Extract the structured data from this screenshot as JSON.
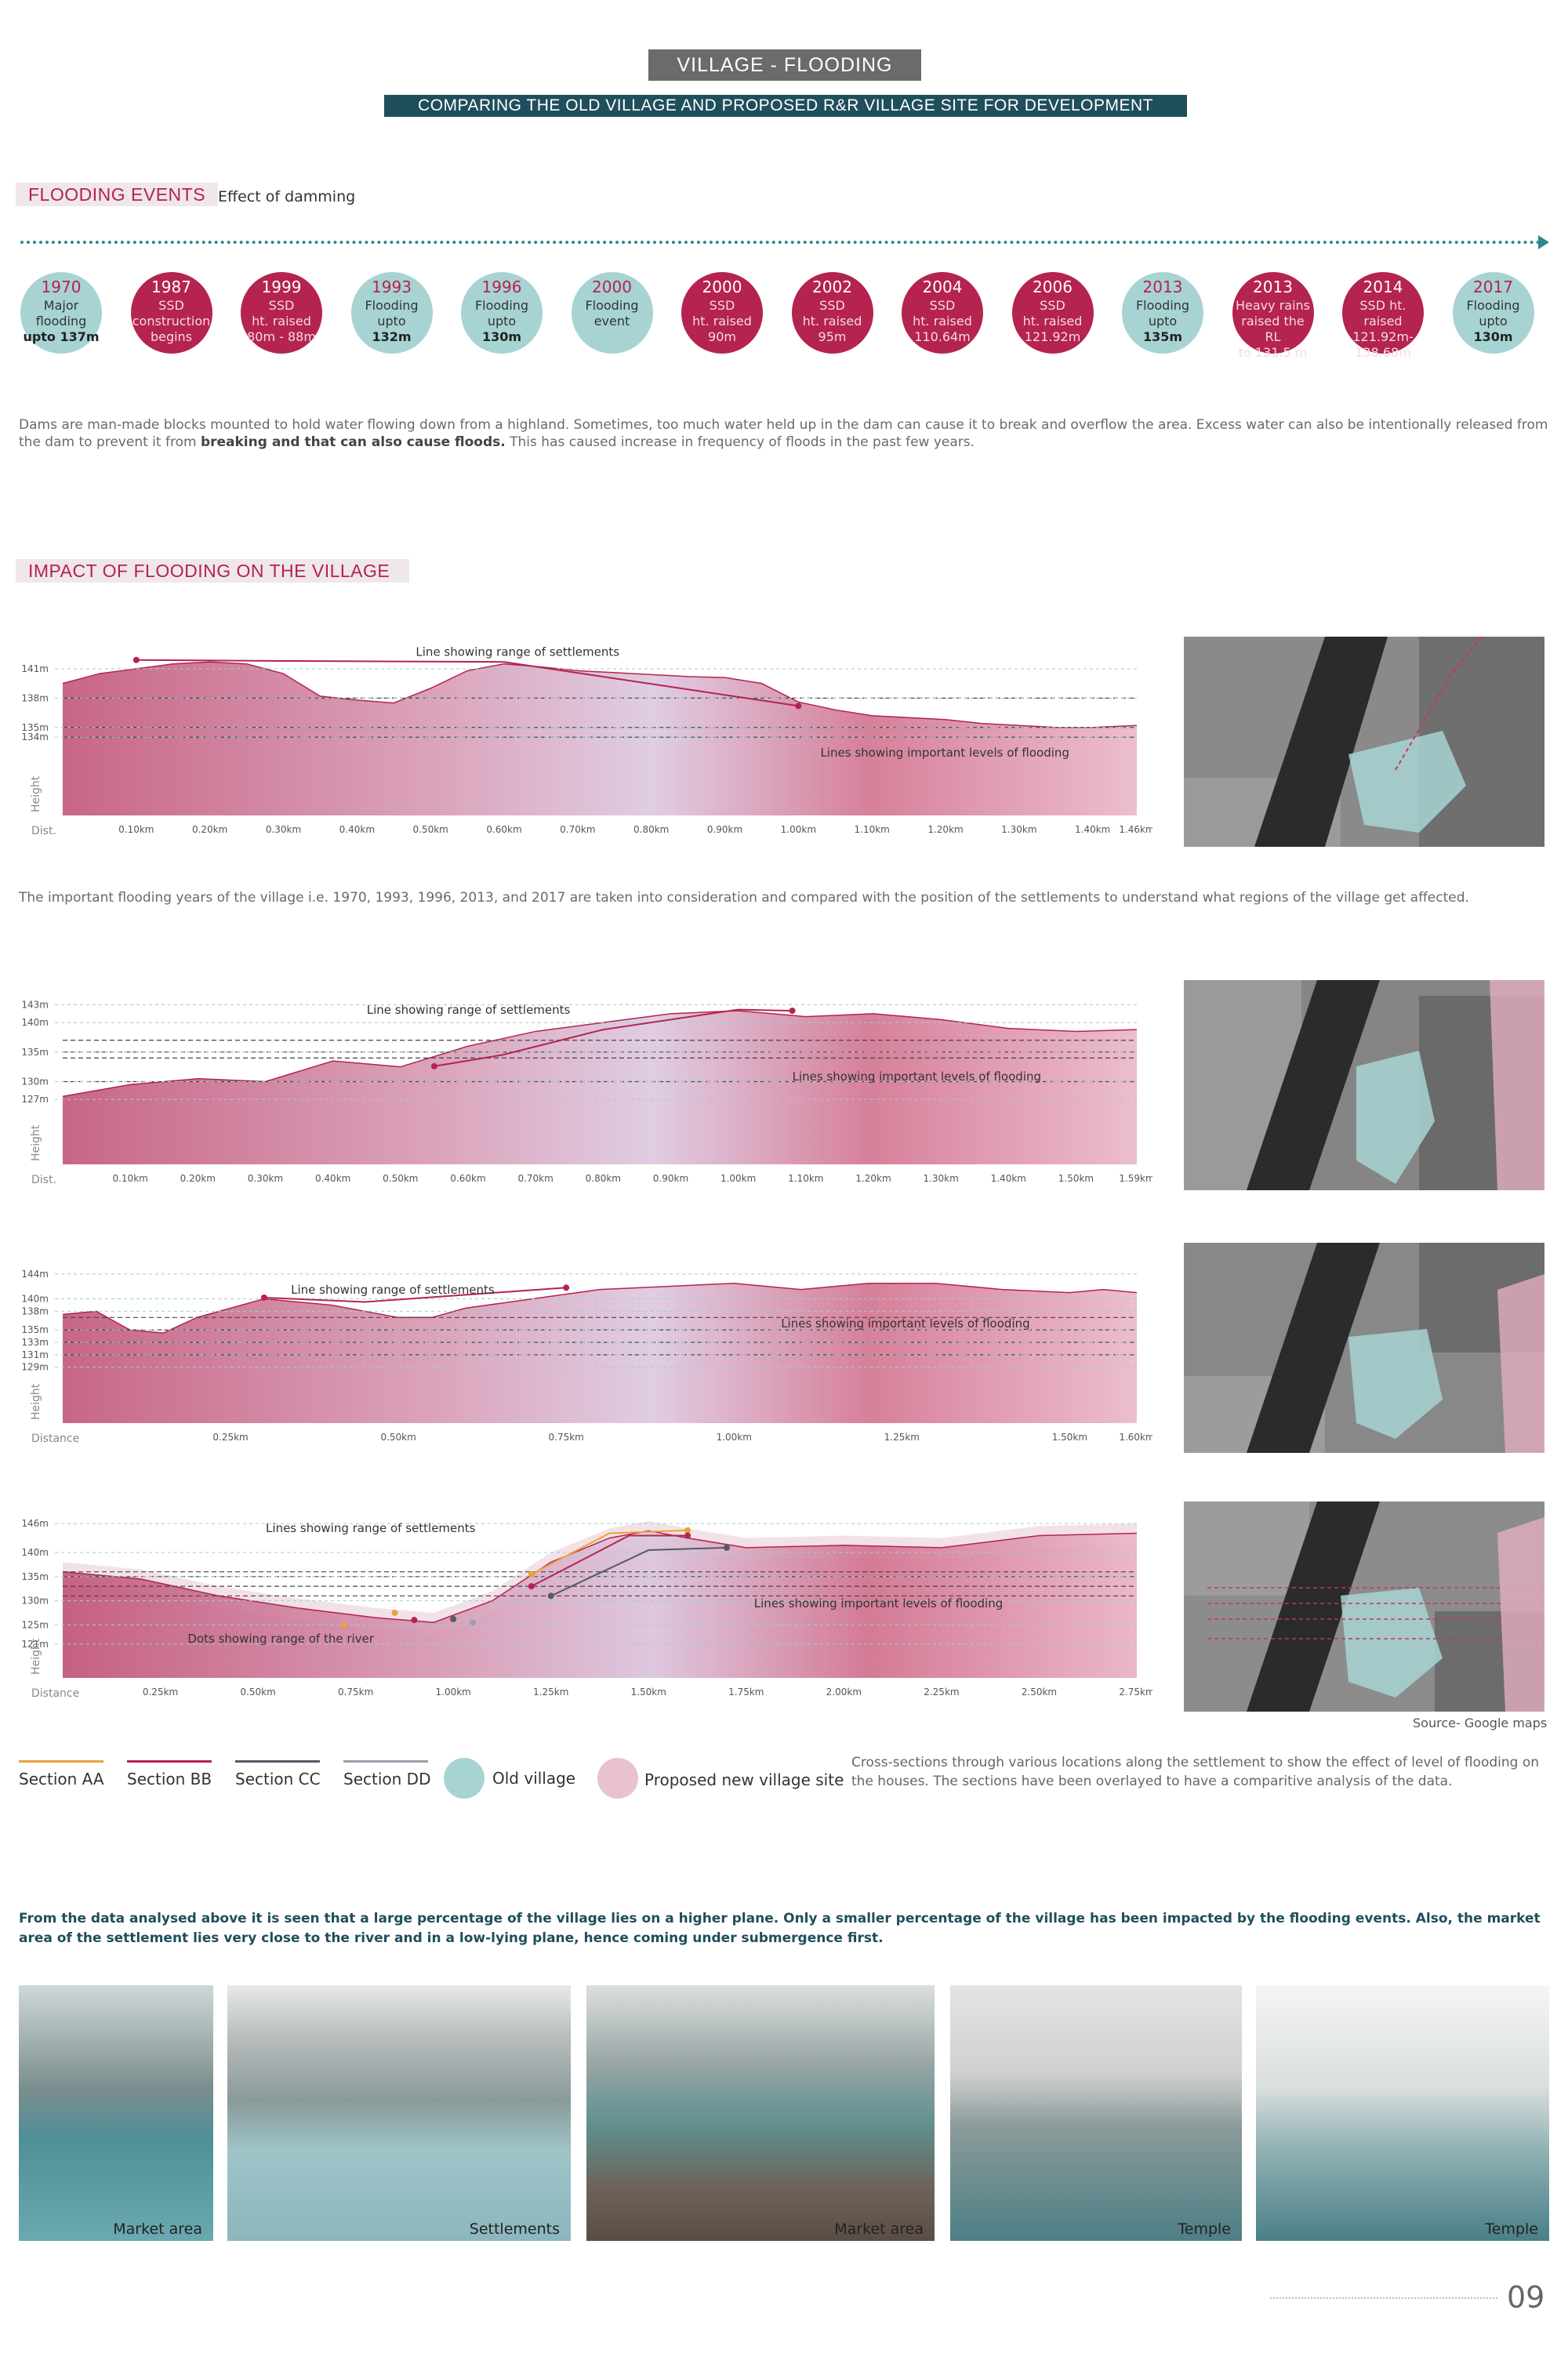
{
  "title": "VILLAGE - FLOODING",
  "subtitle": "COMPARING THE OLD VILLAGE AND PROPOSED R&R VILLAGE SITE FOR DEVELOPMENT",
  "flooding_events": {
    "heading": "FLOODING EVENTS",
    "caption": "Effect of damming",
    "events": [
      {
        "year": "1970",
        "lines": [
          "Major",
          "flooding"
        ],
        "bold": "upto 137m",
        "type": "teal"
      },
      {
        "year": "1987",
        "lines": [
          "SSD",
          "construction",
          "begins"
        ],
        "bold": "",
        "type": "magenta"
      },
      {
        "year": "1999",
        "lines": [
          "SSD",
          "ht. raised",
          "80m - 88m"
        ],
        "bold": "",
        "type": "magenta"
      },
      {
        "year": "1993",
        "lines": [
          "Flooding",
          "upto"
        ],
        "bold": "132m",
        "type": "teal"
      },
      {
        "year": "1996",
        "lines": [
          "Flooding",
          "upto"
        ],
        "bold": "130m",
        "type": "teal"
      },
      {
        "year": "2000",
        "lines": [
          "Flooding",
          "event"
        ],
        "bold": "",
        "type": "teal"
      },
      {
        "year": "2000",
        "lines": [
          "SSD",
          "ht. raised",
          "90m"
        ],
        "bold": "",
        "type": "magenta"
      },
      {
        "year": "2002",
        "lines": [
          "SSD",
          "ht. raised",
          "95m"
        ],
        "bold": "",
        "type": "magenta"
      },
      {
        "year": "2004",
        "lines": [
          "SSD",
          "ht. raised",
          "110.64m"
        ],
        "bold": "",
        "type": "magenta"
      },
      {
        "year": "2006",
        "lines": [
          "SSD",
          "ht. raised",
          "121.92m"
        ],
        "bold": "",
        "type": "magenta"
      },
      {
        "year": "2013",
        "lines": [
          "Flooding",
          "upto"
        ],
        "bold": "135m",
        "type": "teal"
      },
      {
        "year": "2013",
        "lines": [
          "Heavy rains",
          "raised the RL",
          "to 131.5 m"
        ],
        "bold": "",
        "type": "magenta"
      },
      {
        "year": "2014",
        "lines": [
          "SSD ht. raised",
          "121.92m-",
          "138.68m"
        ],
        "bold": "",
        "type": "magenta"
      },
      {
        "year": "2017",
        "lines": [
          "Flooding",
          "upto"
        ],
        "bold": "130m",
        "type": "teal"
      }
    ],
    "paragraph_plain": "Dams are man-made blocks mounted to hold water flowing down from a highland. Sometimes, too much water held up in the dam can cause it to break and overflow the area. Excess water can also be intentionally released from the dam to prevent it from ",
    "paragraph_bold": "breaking and that can also cause floods.",
    "paragraph_end": " This has caused increase in frequency of floods in the past few years."
  },
  "impact": {
    "heading": "IMPACT OF FLOODING ON THE VILLAGE",
    "paragraph": "The important flooding years of the village i.e. 1970, 1993, 1996, 2013, and 2017 are taken into consideration and compared with the position of the settlements to understand what regions of the village get affected."
  },
  "chart_data": [
    {
      "type": "area",
      "section": "Section AA",
      "ylabel": "Height",
      "xlabel": "Dist.",
      "ylim": [
        126,
        143
      ],
      "y_ticks": [
        "141m",
        "138m",
        "135m",
        "134m"
      ],
      "y_tick_values": [
        141,
        138,
        135,
        134
      ],
      "x_ticks": [
        "0.10km",
        "0.20km",
        "0.30km",
        "0.40km",
        "0.50km",
        "0.60km",
        "0.70km",
        "0.80km",
        "0.90km",
        "1.00km",
        "1.10km",
        "1.20km",
        "1.30km",
        "1.40km",
        "1.46km"
      ],
      "x_tick_values": [
        0.1,
        0.2,
        0.3,
        0.4,
        0.5,
        0.6,
        0.7,
        0.8,
        0.9,
        1.0,
        1.1,
        1.2,
        1.3,
        1.4,
        1.46
      ],
      "xlim": [
        0.0,
        1.46
      ],
      "x": [
        0.0,
        0.05,
        0.1,
        0.15,
        0.2,
        0.25,
        0.3,
        0.35,
        0.4,
        0.45,
        0.5,
        0.55,
        0.6,
        0.65,
        0.7,
        0.75,
        0.8,
        0.85,
        0.9,
        0.95,
        1.0,
        1.05,
        1.1,
        1.15,
        1.2,
        1.25,
        1.3,
        1.35,
        1.4,
        1.46
      ],
      "y": [
        139.5,
        140.5,
        141.0,
        141.5,
        141.7,
        141.5,
        140.5,
        138.2,
        137.8,
        137.5,
        139.0,
        140.8,
        141.5,
        141.2,
        140.8,
        140.6,
        140.4,
        140.2,
        140.1,
        139.5,
        137.6,
        136.8,
        136.2,
        136.0,
        135.8,
        135.4,
        135.2,
        135.0,
        135.0,
        135.2
      ],
      "flood_levels": [
        138,
        135,
        134
      ],
      "annotations": [
        "Line showing range of settlements",
        "Lines showing important levels of flooding"
      ]
    },
    {
      "type": "area",
      "section": "Section BB",
      "ylabel": "Height",
      "xlabel": "Dist.",
      "ylim": [
        116,
        144
      ],
      "y_ticks": [
        "143m",
        "140m",
        "135m",
        "130m",
        "127m"
      ],
      "y_tick_values": [
        143,
        140,
        135,
        130,
        127
      ],
      "x_ticks": [
        "0.10km",
        "0.20km",
        "0.30km",
        "0.40km",
        "0.50km",
        "0.60km",
        "0.70km",
        "0.80km",
        "0.90km",
        "1.00km",
        "1.10km",
        "1.20km",
        "1.30km",
        "1.40km",
        "1.50km",
        "1.59km"
      ],
      "x_tick_values": [
        0.1,
        0.2,
        0.3,
        0.4,
        0.5,
        0.6,
        0.7,
        0.8,
        0.9,
        1.0,
        1.1,
        1.2,
        1.3,
        1.4,
        1.5,
        1.59
      ],
      "xlim": [
        0.0,
        1.59
      ],
      "x": [
        0.0,
        0.1,
        0.2,
        0.3,
        0.4,
        0.5,
        0.6,
        0.7,
        0.8,
        0.9,
        1.0,
        1.1,
        1.2,
        1.3,
        1.4,
        1.5,
        1.59
      ],
      "y": [
        127.5,
        129.5,
        130.5,
        130.0,
        133.5,
        132.5,
        136.0,
        138.5,
        140.0,
        141.5,
        142.0,
        141.0,
        141.5,
        140.5,
        139.0,
        138.5,
        138.8
      ],
      "flood_levels": [
        137,
        135,
        134,
        130
      ],
      "annotations": [
        "Line showing range of settlements",
        "Lines showing important levels of flooding"
      ]
    },
    {
      "type": "area",
      "section": "Section CC",
      "ylabel": "Height",
      "xlabel": "Distance",
      "ylim": [
        120,
        146
      ],
      "y_ticks": [
        "144m",
        "140m",
        "138m",
        "135m",
        "133m",
        "131m",
        "129m"
      ],
      "y_tick_values": [
        144,
        140,
        138,
        135,
        133,
        131,
        129
      ],
      "x_ticks": [
        "0.25km",
        "0.50km",
        "0.75km",
        "1.00km",
        "1.25km",
        "1.50km",
        "1.60km"
      ],
      "x_tick_values": [
        0.25,
        0.5,
        0.75,
        1.0,
        1.25,
        1.5,
        1.6
      ],
      "xlim": [
        0.0,
        1.6
      ],
      "x": [
        0.0,
        0.05,
        0.1,
        0.15,
        0.2,
        0.3,
        0.4,
        0.5,
        0.55,
        0.6,
        0.7,
        0.8,
        0.9,
        1.0,
        1.1,
        1.2,
        1.3,
        1.4,
        1.5,
        1.55,
        1.6
      ],
      "y": [
        137.5,
        138.0,
        135.0,
        134.5,
        137.0,
        140.0,
        139.0,
        137.0,
        137.0,
        138.5,
        140.0,
        141.5,
        142.0,
        142.5,
        141.5,
        142.5,
        142.5,
        141.5,
        141.0,
        141.5,
        141.0
      ],
      "flood_levels": [
        137,
        135,
        133,
        131
      ],
      "annotations": [
        "Line showing range of settlements",
        "Lines showing important levels of flooding"
      ]
    },
    {
      "type": "area",
      "section": "Section DD",
      "ylabel": "Height",
      "xlabel": "Distance",
      "ylim": [
        114,
        147
      ],
      "y_ticks": [
        "146m",
        "140m",
        "135m",
        "130m",
        "125m",
        "121m"
      ],
      "y_tick_values": [
        146,
        140,
        135,
        130,
        125,
        121
      ],
      "x_ticks": [
        "0.25km",
        "0.50km",
        "0.75km",
        "1.00km",
        "1.25km",
        "1.50km",
        "1.75km",
        "2.00km",
        "2.25km",
        "2.50km",
        "2.75km"
      ],
      "x_tick_values": [
        0.25,
        0.5,
        0.75,
        1.0,
        1.25,
        1.5,
        1.75,
        2.0,
        2.25,
        2.5,
        2.75
      ],
      "xlim": [
        0.0,
        2.75
      ],
      "x": [
        0.0,
        0.2,
        0.4,
        0.6,
        0.8,
        0.95,
        1.1,
        1.25,
        1.4,
        1.5,
        1.6,
        1.75,
        2.0,
        2.25,
        2.5,
        2.75
      ],
      "y": [
        136.0,
        134.5,
        131.0,
        128.5,
        126.5,
        125.5,
        130.0,
        138.0,
        143.0,
        144.5,
        143.0,
        141.0,
        141.5,
        141.0,
        143.5,
        144.0
      ],
      "flood_levels": [
        136,
        135,
        133,
        131
      ],
      "annotations": [
        "Lines showing range of settlements",
        "Lines showing important levels of flooding",
        "Dots showing range of the river"
      ]
    }
  ],
  "maps_source": "Source- Google maps",
  "legend": {
    "items": [
      {
        "label": "Section AA",
        "color": "#e8a33a"
      },
      {
        "label": "Section BB",
        "color": "#b5234f"
      },
      {
        "label": "Section CC",
        "color": "#555a66"
      },
      {
        "label": "Section DD",
        "color": "#9aa0ad"
      }
    ],
    "old_village": "Old village",
    "new_village": "Proposed new village site",
    "old_color": "#a7d3d3",
    "new_color": "#e8c2cf",
    "note": "Cross-sections through various locations along the settlement to show the effect of level of flooding on the houses. The sections have been overlayed to have a comparitive analysis of the data."
  },
  "conclusion": "From the data analysed above it is seen that a large percentage of the village lies on a higher plane. Only a smaller percentage of the village has been impacted by the flooding events. Also, the market area of the settlement lies very close to the river and in a low-lying plane, hence coming under submergence first.",
  "photos": [
    "Market area",
    "Settlements",
    "Market area",
    "Temple",
    "Temple"
  ],
  "page_number": "09",
  "colors": {
    "magenta": "#b5234f",
    "teal": "#a7d3d3",
    "dark_teal": "#1f4e5c",
    "grey": "#6b6b6b"
  }
}
